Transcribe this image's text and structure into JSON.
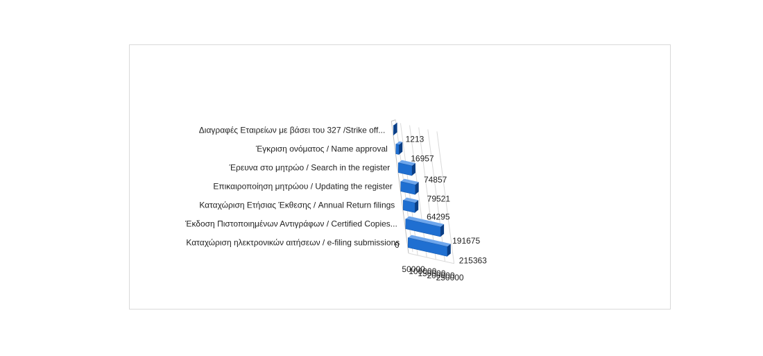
{
  "chart_data": {
    "type": "bar",
    "orientation": "horizontal",
    "style": "3d",
    "categories": [
      "Διαγραφές Εταιρείων  με  βάσει του 327 /Strike off...",
      "Έγκριση ονόματος / Name approval",
      "Έρευνα στο μητρώο / Search in the register",
      "Επικαιροποίηση μητρώου / Updating the register",
      "Καταχώριση Ετήσιας Έκθεσης / Annual Return filings",
      "Έκδοση Πιστοποιημένων Αντιγράφων / Certified Copies...",
      "Καταχώριση ηλεκτρονικών αιτήσεων / e-filing submissions"
    ],
    "values": [
      1213,
      16957,
      74857,
      79521,
      64295,
      191675,
      215363
    ],
    "data_labels": [
      "1213",
      "16957",
      "74857",
      "79521",
      "64295",
      "191675",
      "215363"
    ],
    "x_ticks": [
      "0",
      "50000",
      "100000",
      "150000",
      "200000",
      "250000"
    ],
    "xlim": [
      0,
      250000
    ],
    "grid": true,
    "legend": "none",
    "colors": {
      "bar_front": "#1f6fd1",
      "bar_top": "#6ea6ec",
      "bar_side": "#0b3f86",
      "grid": "#d9d9d9",
      "text": "#222222"
    }
  }
}
